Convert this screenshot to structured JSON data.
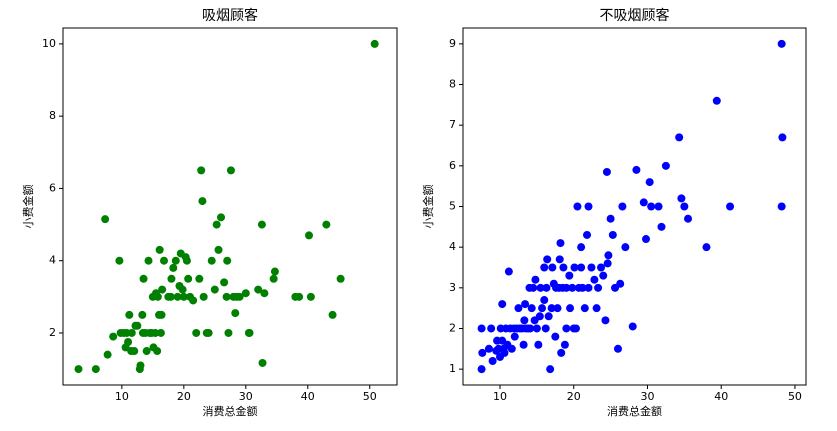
{
  "chart_data": [
    {
      "type": "scatter",
      "title": "吸烟顾客",
      "x_label": "消费总金额",
      "y_label": "小费金额",
      "color": "#008000",
      "xlim": [
        0.5,
        54.4
      ],
      "ylim": [
        0.56,
        10.44
      ],
      "xticks": [
        10,
        20,
        30,
        40,
        50
      ],
      "yticks": [
        2,
        4,
        6,
        8,
        10
      ],
      "x": [
        3,
        5.8,
        7.3,
        7.7,
        8.6,
        9.6,
        9.8,
        10.3,
        10.6,
        10.8,
        11,
        11.2,
        11.5,
        11.6,
        12,
        12.2,
        12.5,
        12.9,
        13,
        13.3,
        13.4,
        13.5,
        13.8,
        14,
        14.3,
        14.5,
        14.8,
        15,
        15.1,
        15.4,
        15.5,
        15.7,
        15.8,
        16,
        16.1,
        16.3,
        16.4,
        16.5,
        16.8,
        17.5,
        17.9,
        18,
        18.3,
        18.7,
        19,
        19.3,
        19.5,
        19.8,
        20,
        20.3,
        20.5,
        20.7,
        21,
        21.5,
        22,
        22.5,
        22.8,
        23,
        23.2,
        23.7,
        24,
        24.5,
        25,
        25.3,
        25.6,
        26,
        26.5,
        26.9,
        27,
        27.2,
        27.6,
        28,
        28.3,
        28.5,
        29,
        30,
        30.5,
        30.6,
        32,
        32.6,
        32.7,
        33,
        34.5,
        34.7,
        38,
        38.6,
        40.2,
        40.5,
        43,
        44,
        45.3,
        50.8
      ],
      "values": [
        1,
        1,
        5.15,
        1.4,
        1.9,
        4,
        2,
        2,
        1.6,
        2,
        1.75,
        2.5,
        1.5,
        2,
        1.5,
        2.2,
        2.2,
        1,
        1.1,
        2.5,
        2,
        3.5,
        2,
        1.5,
        4,
        2,
        2,
        3,
        1.6,
        2,
        3.1,
        1.5,
        3,
        2.5,
        4.3,
        2,
        2.5,
        3.2,
        4,
        3,
        3,
        3.5,
        3.8,
        4,
        3,
        3.3,
        4.2,
        3.2,
        3,
        4.1,
        4,
        3.5,
        3,
        2.9,
        2,
        3.5,
        6.5,
        5.65,
        3,
        2,
        2,
        4,
        3.2,
        5,
        4.3,
        5.2,
        3.4,
        3,
        4,
        2,
        6.5,
        3,
        2.55,
        3,
        3,
        3.1,
        2,
        2,
        3.2,
        5,
        1.17,
        3.1,
        3.5,
        3.7,
        3,
        3,
        4.7,
        3,
        5,
        2.5,
        3.5,
        10
      ]
    },
    {
      "type": "scatter",
      "title": "不吸烟顾客",
      "x_label": "消费总金额",
      "y_label": "小费金额",
      "color": "#0000ff",
      "xlim": [
        4.98,
        51.5
      ],
      "ylim": [
        0.61,
        9.39
      ],
      "xticks": [
        10,
        20,
        30,
        40,
        50
      ],
      "yticks": [
        1,
        2,
        3,
        4,
        5,
        6,
        7,
        8,
        9
      ],
      "x": [
        7.5,
        7.5,
        7.6,
        8.5,
        8.8,
        9,
        9.5,
        9.6,
        9.8,
        10,
        10.1,
        10.3,
        10.3,
        10.5,
        10.6,
        10.8,
        11,
        11.2,
        11.4,
        11.6,
        11.9,
        12,
        12.3,
        12.5,
        12.7,
        13,
        13.2,
        13.3,
        13.4,
        13.5,
        13.8,
        14,
        14.1,
        14.3,
        14.5,
        14.7,
        14.8,
        15,
        15.2,
        15.4,
        15.5,
        15.7,
        16,
        16,
        16.2,
        16.3,
        16.4,
        16.6,
        16.8,
        17,
        17.1,
        17.3,
        17.5,
        17.6,
        17.8,
        18,
        18.1,
        18.2,
        18.3,
        18.5,
        18.6,
        18.8,
        19,
        19,
        19.4,
        19.5,
        19.8,
        20,
        20.1,
        20.3,
        20.5,
        20.7,
        21,
        21,
        21.2,
        21.5,
        21.8,
        22,
        22,
        22.4,
        22.8,
        23.1,
        23.3,
        23.7,
        24,
        24.3,
        24.5,
        24.6,
        24.7,
        25,
        25.3,
        25.6,
        26,
        26.3,
        26.6,
        27,
        28,
        28.5,
        29.5,
        29.8,
        30.3,
        30.5,
        31.5,
        31.9,
        32.5,
        34.3,
        34.6,
        35,
        35.5,
        38,
        39.4,
        41.2,
        48.2,
        48.3,
        48.2
      ],
      "values": [
        1,
        2,
        1.4,
        1.5,
        2,
        1.2,
        1.45,
        1.7,
        1.5,
        1.3,
        2,
        1.7,
        2.6,
        1.5,
        1.4,
        2,
        1.6,
        3.4,
        2,
        1.5,
        2,
        1.8,
        2,
        2.5,
        2,
        2,
        1.6,
        2.2,
        2.6,
        2,
        2,
        3,
        2,
        2.5,
        3,
        2.2,
        3.2,
        2,
        1.6,
        2.3,
        3,
        2.5,
        2.7,
        3.5,
        2,
        3,
        3.7,
        2.3,
        1,
        2.5,
        3.5,
        3.1,
        1.8,
        3,
        2.5,
        3,
        3.7,
        4.1,
        1.4,
        3,
        3.5,
        1.6,
        2,
        3,
        3.3,
        2.5,
        3,
        2,
        3.5,
        2,
        5,
        3,
        3.5,
        4,
        3,
        2.5,
        4.3,
        3,
        5,
        3.5,
        3.2,
        2.5,
        3,
        3.5,
        3.3,
        2.2,
        5.85,
        3.6,
        3.8,
        4.7,
        4.3,
        3,
        1.5,
        3.1,
        5,
        4,
        2.05,
        5.9,
        5.1,
        4.2,
        5.6,
        5,
        5,
        4.5,
        6,
        6.7,
        5.2,
        5,
        4.7,
        4,
        7.6,
        5,
        5,
        6.7,
        9
      ]
    }
  ]
}
